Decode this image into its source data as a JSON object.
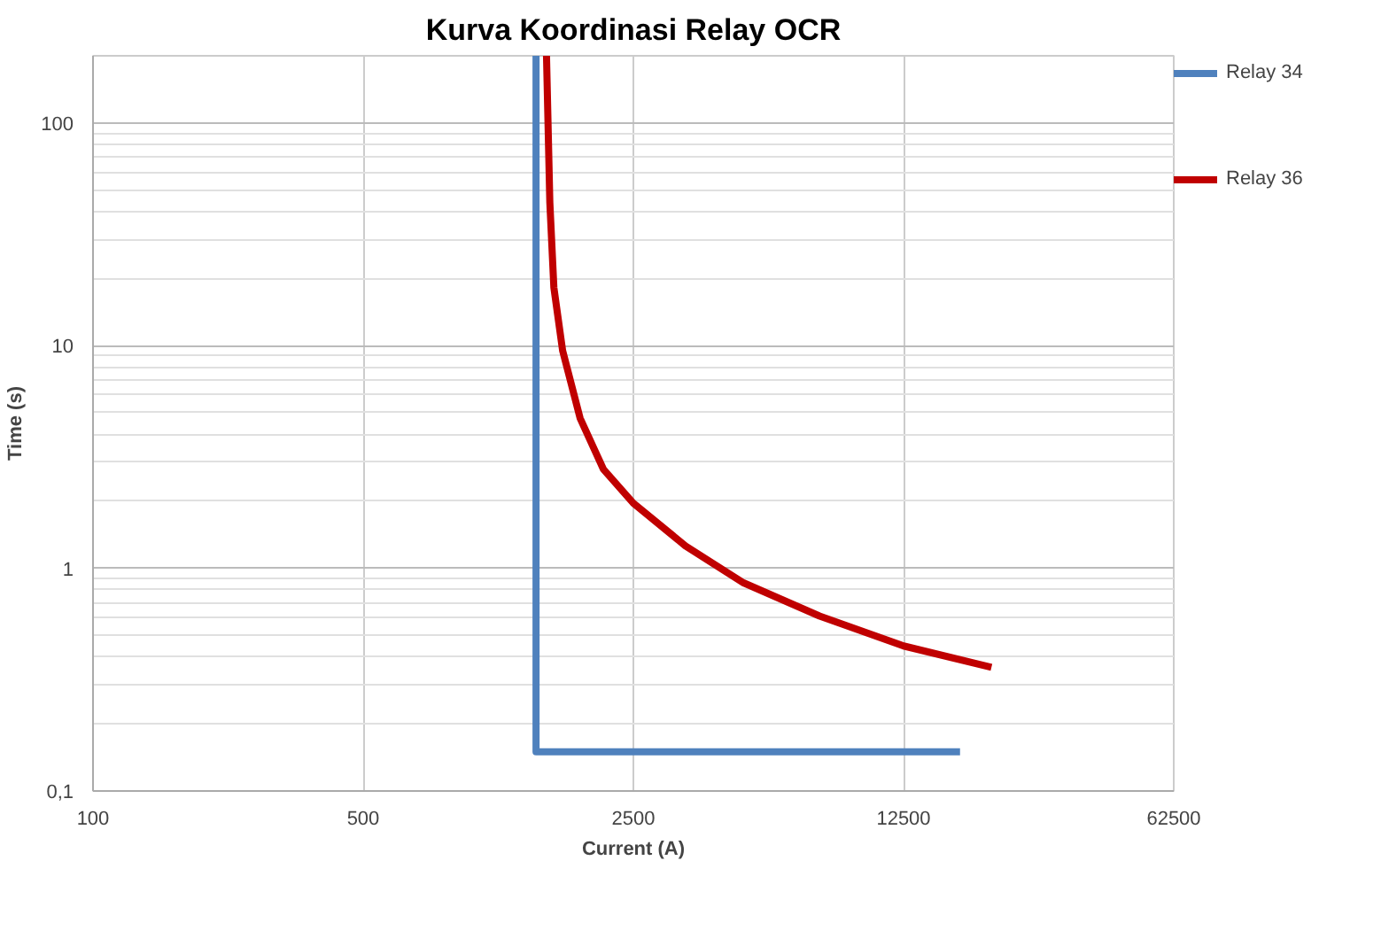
{
  "chart_data": {
    "type": "line",
    "title": "Kurva Koordinasi Relay OCR",
    "xlabel": "Current (A)",
    "ylabel": "Time (s)",
    "log": "xy",
    "xlim": [
      100,
      62500
    ],
    "xticks": [
      100,
      500,
      2500,
      12500,
      62500
    ],
    "ylim": [
      0.1,
      200
    ],
    "yticks": [
      {
        "value": 0.1,
        "label": "0,1"
      },
      1,
      10,
      100
    ],
    "grid": true,
    "legend": "right",
    "line_style": "solid",
    "marker": "none",
    "series": [
      {
        "name": "Relay 34",
        "color": "#4f81bd",
        "x": [
          1400,
          1400,
          17500
        ],
        "values": [
          200,
          0.15,
          0.15
        ]
      },
      {
        "name": "Relay 36",
        "color": "#c00000",
        "x": [
          1490,
          1520,
          1557,
          1640,
          1820,
          2090,
          2500,
          3410,
          4820,
          7580,
          12500,
          21100
        ],
        "values": [
          200,
          43.8,
          18.2,
          9.5,
          4.72,
          2.79,
          1.96,
          1.26,
          0.86,
          0.61,
          0.448,
          0.359
        ]
      }
    ]
  }
}
